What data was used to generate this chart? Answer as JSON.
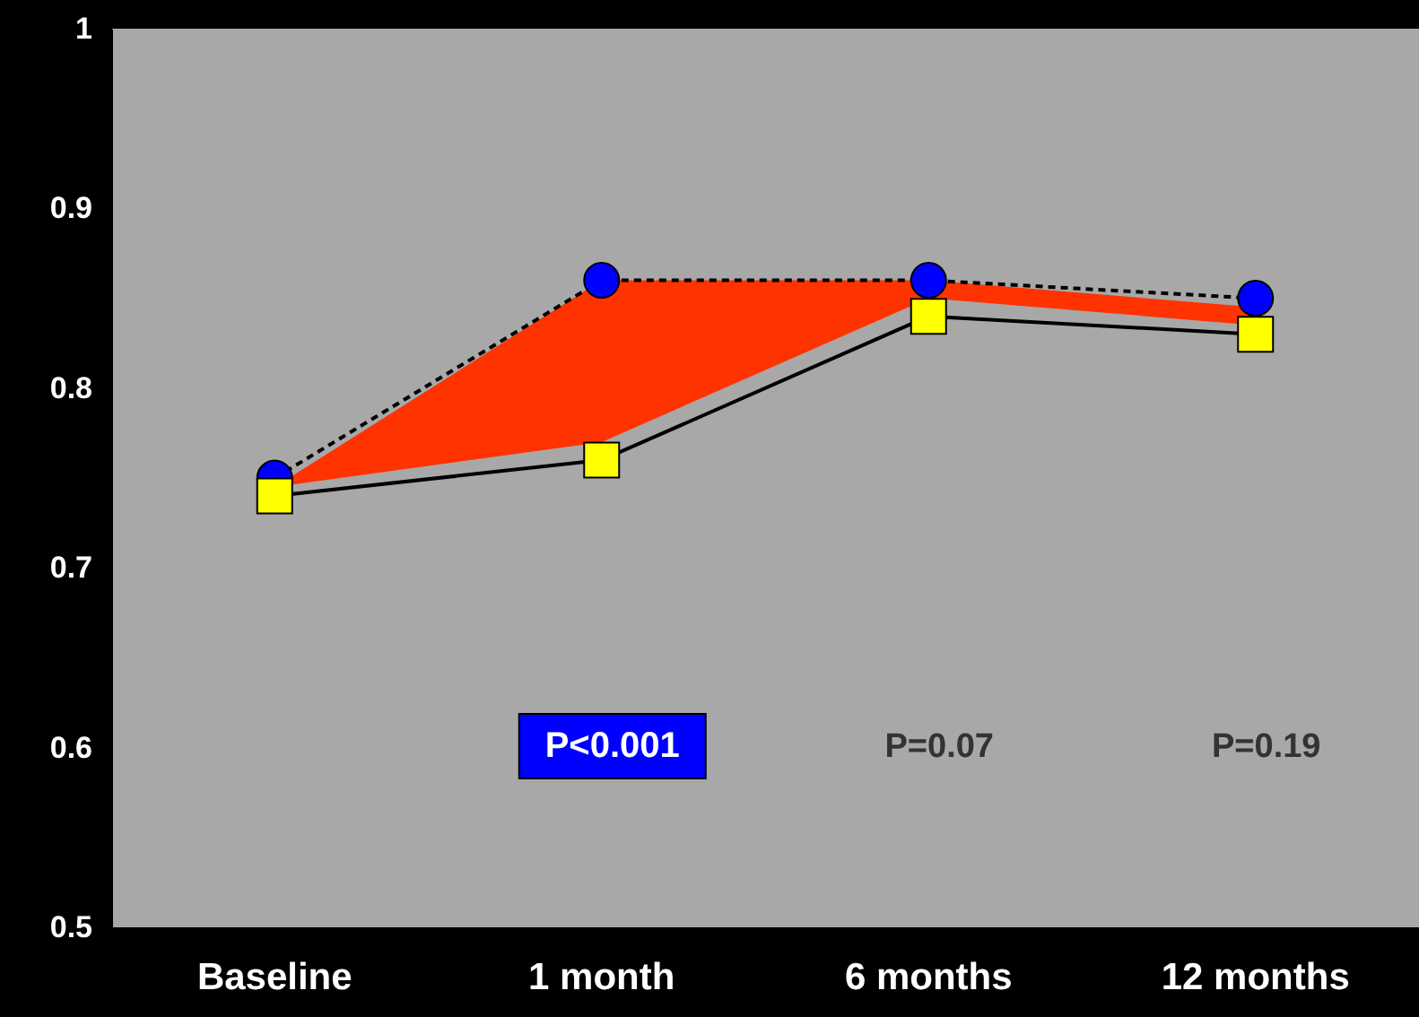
{
  "chart_data": {
    "type": "line",
    "categories": [
      "Baseline",
      "1 month",
      "6 months",
      "12 months"
    ],
    "series": [
      {
        "color": "#0000ff",
        "marker": "circle",
        "line_style": "dashed",
        "values": [
          0.75,
          0.86,
          0.86,
          0.85
        ],
        "lower": [
          0.745,
          0.77,
          0.85,
          0.835
        ],
        "upper": [
          0.745,
          0.86,
          0.86,
          0.845
        ]
      },
      {
        "color": "#ffff00",
        "marker": "square",
        "line_style": "solid",
        "values": [
          0.74,
          0.76,
          0.84,
          0.83
        ]
      }
    ],
    "ylim": [
      0.5,
      1
    ],
    "yticks": [
      0.5,
      0.6,
      0.7,
      0.8,
      0.9,
      1
    ],
    "grid": false,
    "annotations": [
      "P<0.001",
      "P=0.07",
      "P=0.19"
    ]
  }
}
